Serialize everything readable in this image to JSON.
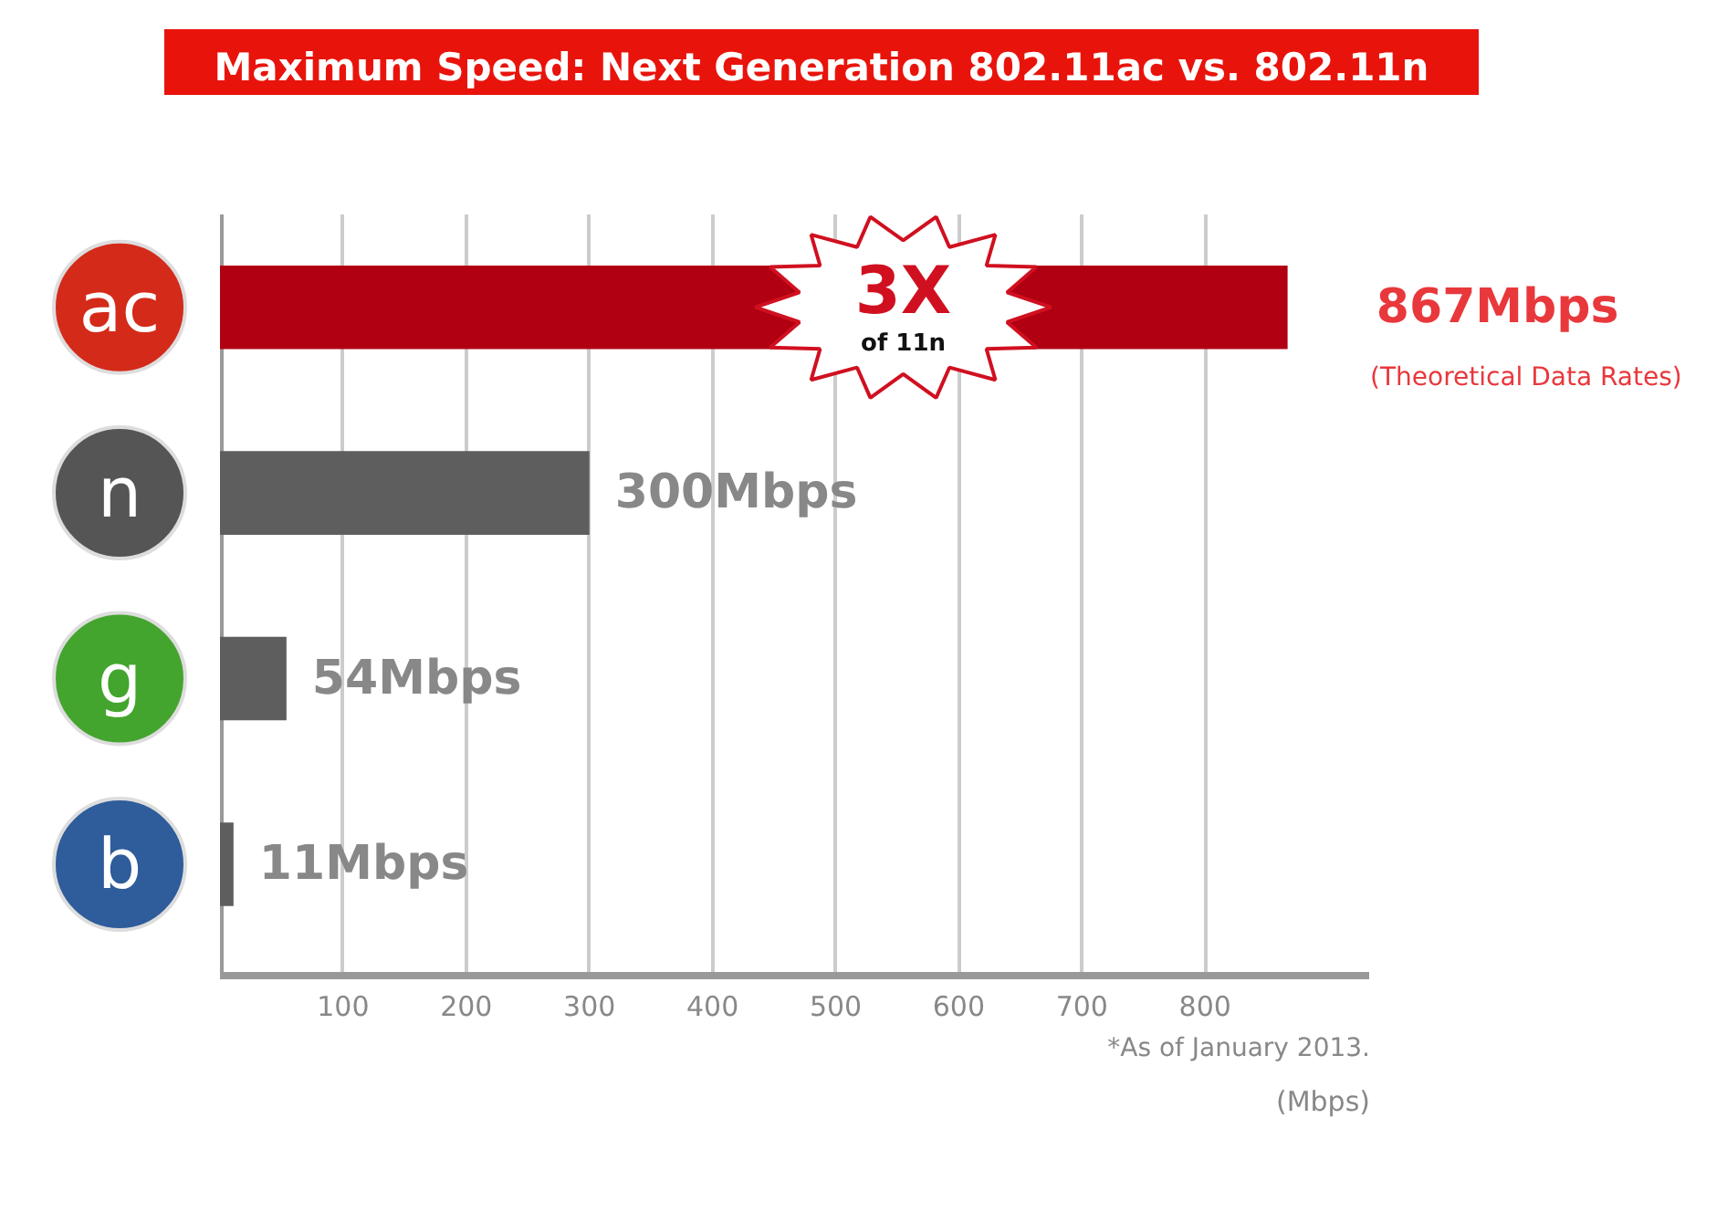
{
  "chart_data": {
    "type": "bar",
    "orientation": "horizontal",
    "title": "Maximum Speed: Next Generation 802.11ac vs. 802.11n",
    "categories": [
      "ac",
      "n",
      "g",
      "b"
    ],
    "values": [
      867,
      300,
      54,
      11
    ],
    "colors": [
      "#b00012",
      "#5e5e5e",
      "#5e5e5e",
      "#5e5e5e"
    ],
    "value_labels": [
      "867Mbps",
      "300Mbps",
      "54Mbps",
      "11Mbps"
    ],
    "xlabel": "(Mbps)",
    "xlim": [
      0,
      934
    ],
    "xticks": [
      100,
      200,
      300,
      400,
      500,
      600,
      700,
      800
    ],
    "grid": "x",
    "annotations": [
      "3X",
      "of 11n",
      "(Theoretical Data Rates)",
      "*As of January 2013."
    ]
  }
}
